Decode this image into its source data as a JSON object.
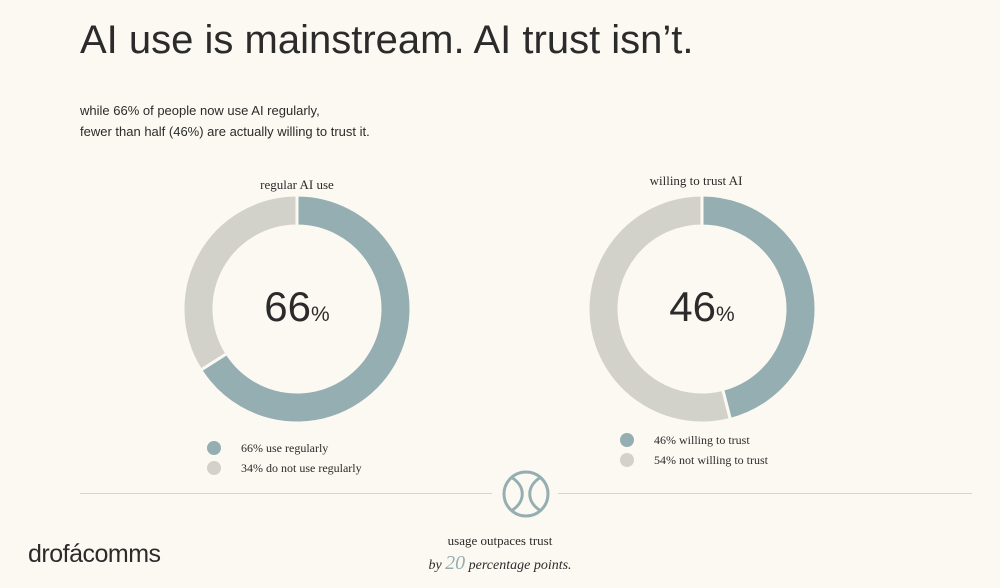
{
  "header": {
    "title": "AI use is mainstream. AI trust isn’t.",
    "subtitle_line1": "while 66% of people now use AI regularly,",
    "subtitle_line2": "fewer than half (46%) are actually willing to trust it."
  },
  "colors": {
    "primary": "#95aeb1",
    "secondary": "#d3d2ca",
    "background": "#fcf9f2",
    "text": "#2b2b2b"
  },
  "chart_data": [
    {
      "type": "pie",
      "title": "regular AI use",
      "center_value": "66",
      "center_unit": "%",
      "slices": [
        {
          "label": "66% use regularly",
          "value": 66,
          "color": "#95aeb1"
        },
        {
          "label": "34% do not use regularly",
          "value": 34,
          "color": "#d3d2ca"
        }
      ]
    },
    {
      "type": "pie",
      "title": "willing to trust AI",
      "center_value": "46",
      "center_unit": "%",
      "slices": [
        {
          "label": "46% willing to trust",
          "value": 46,
          "color": "#95aeb1"
        },
        {
          "label": "54% not willing to trust",
          "value": 54,
          "color": "#d3d2ca"
        }
      ]
    }
  ],
  "footer": {
    "emblem_icon": "interlocking-rings-icon",
    "line1": "usage outpaces trust",
    "line2_prefix": "by",
    "line2_number": "20",
    "line2_suffix": "percentage points."
  },
  "brand": {
    "logo_text": "drofácomms"
  }
}
